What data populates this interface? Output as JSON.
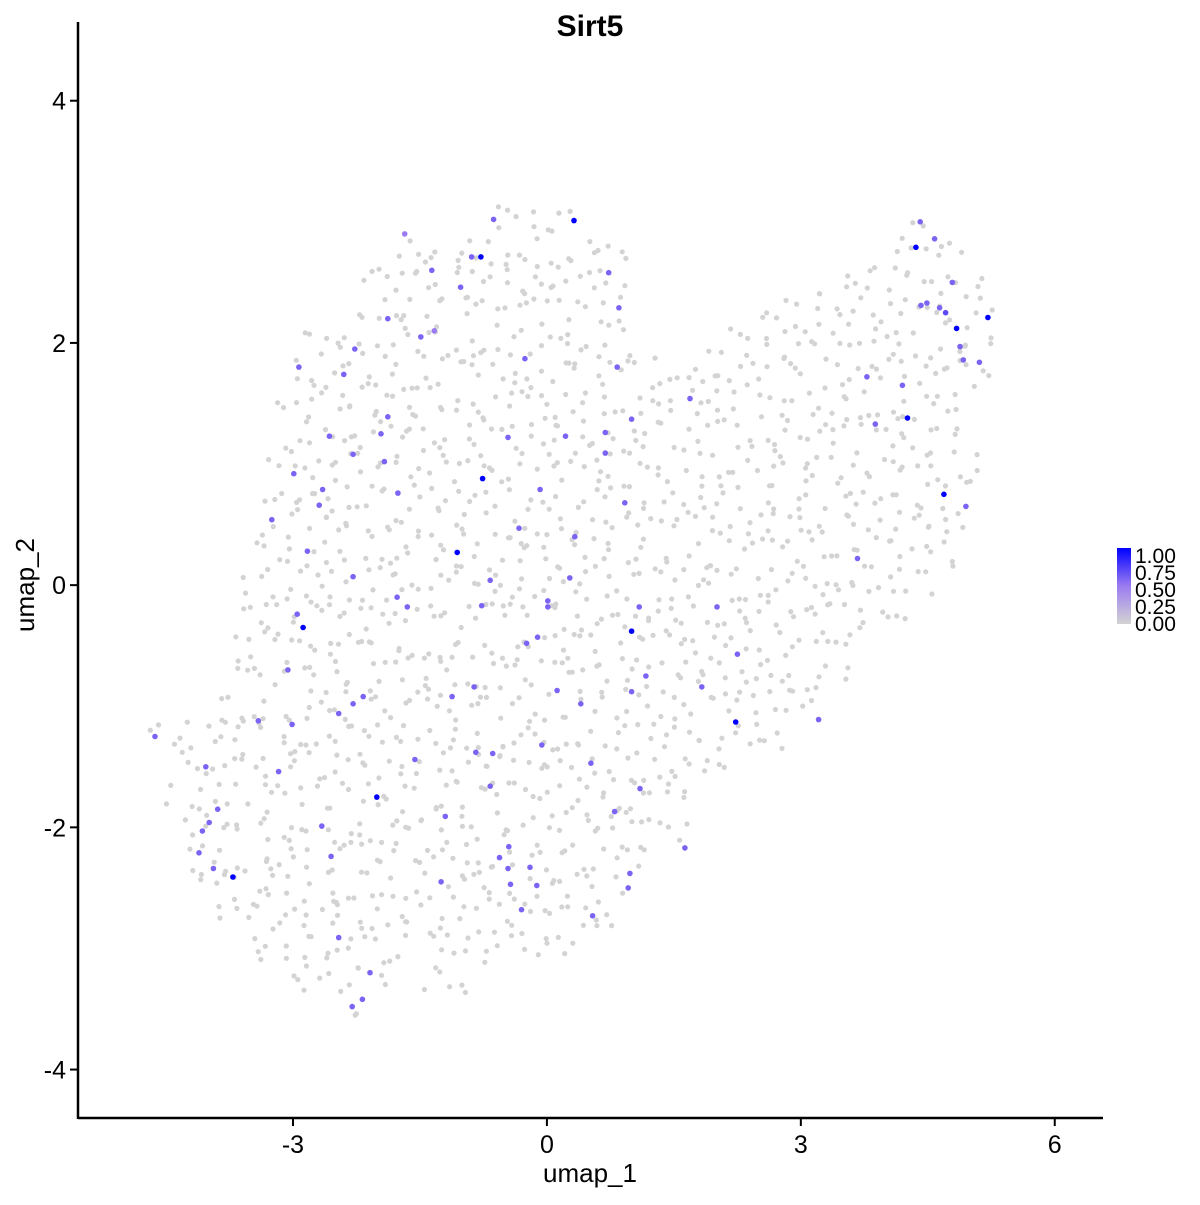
{
  "chart_data": {
    "type": "scatter",
    "title": "Sirt5",
    "xlabel": "umap_1",
    "ylabel": "umap_2",
    "xlim": [
      -5.54,
      6.57
    ],
    "ylim": [
      -4.4,
      4.65
    ],
    "xticks": [
      -3,
      0,
      3,
      6
    ],
    "yticks": [
      -4,
      -2,
      0,
      2,
      4
    ],
    "grid": false,
    "legend": {
      "placement": "right",
      "type": "colorbar",
      "labels": [
        "1.00",
        "0.75",
        "0.50",
        "0.25",
        "0.00"
      ],
      "low_color": "#D3D3D3",
      "high_color": "#0000FF"
    },
    "zero_expression_cells": {
      "color": "#D3D3D3",
      "value": 0,
      "rows": [
        {
          "y": 3.0,
          "x": [
            [
              -0.6,
              0.4
            ],
            [
              4.4,
              4.6
            ]
          ]
        },
        {
          "y": 2.75,
          "x": [
            [
              -1.7,
              1.0
            ],
            [
              4.2,
              4.9
            ]
          ]
        },
        {
          "y": 2.5,
          "x": [
            [
              -2.1,
              1.0
            ],
            [
              3.3,
              5.3
            ]
          ]
        },
        {
          "y": 2.25,
          "x": [
            [
              -2.2,
              0.9
            ],
            [
              2.6,
              5.4
            ]
          ]
        },
        {
          "y": 2.0,
          "x": [
            [
              -2.9,
              1.0
            ],
            [
              2.0,
              5.4
            ]
          ]
        },
        {
          "y": 1.75,
          "x": [
            [
              -3.0,
              5.3
            ]
          ]
        },
        {
          "y": 1.5,
          "x": [
            [
              -3.1,
              5.1
            ]
          ]
        },
        {
          "y": 1.25,
          "x": [
            [
              -3.0,
              5.0
            ]
          ]
        },
        {
          "y": 1.0,
          "x": [
            [
              -3.2,
              5.2
            ]
          ]
        },
        {
          "y": 0.75,
          "x": [
            [
              -3.25,
              5.1
            ]
          ]
        },
        {
          "y": 0.5,
          "x": [
            [
              -3.3,
              5.0
            ]
          ]
        },
        {
          "y": 0.25,
          "x": [
            [
              -3.4,
              4.9
            ]
          ]
        },
        {
          "y": 0.0,
          "x": [
            [
              -3.5,
              4.7
            ]
          ]
        },
        {
          "y": -0.25,
          "x": [
            [
              -3.6,
              4.4
            ]
          ]
        },
        {
          "y": -0.5,
          "x": [
            [
              -3.6,
              3.8
            ]
          ]
        },
        {
          "y": -0.75,
          "x": [
            [
              -3.7,
              3.6
            ]
          ]
        },
        {
          "y": -1.0,
          "x": [
            [
              -3.9,
              3.3
            ]
          ]
        },
        {
          "y": -1.25,
          "x": [
            [
              -4.6,
              2.9
            ]
          ]
        },
        {
          "y": -1.5,
          "x": [
            [
              -4.3,
              2.3
            ]
          ]
        },
        {
          "y": -1.75,
          "x": [
            [
              -4.4,
              1.8
            ]
          ]
        },
        {
          "y": -2.0,
          "x": [
            [
              -4.2,
              1.7
            ]
          ]
        },
        {
          "y": -2.25,
          "x": [
            [
              -4.2,
              1.3
            ]
          ]
        },
        {
          "y": -2.5,
          "x": [
            [
              -4.0,
              1.0
            ]
          ]
        },
        {
          "y": -2.75,
          "x": [
            [
              -3.8,
              0.9
            ]
          ]
        },
        {
          "y": -3.0,
          "x": [
            [
              -3.5,
              -1.5
            ],
            [
              -1.3,
              0.3
            ]
          ]
        },
        {
          "y": -3.25,
          "x": [
            [
              -3.0,
              -1.9
            ],
            [
              -1.4,
              -1.0
            ]
          ]
        },
        {
          "y": -3.5,
          "x": [
            [
              -2.3,
              -2.1
            ]
          ]
        }
      ]
    },
    "expressing_cells": [
      [
        0.32,
        3.01,
        1
      ],
      [
        -0.78,
        2.71,
        1
      ],
      [
        4.36,
        2.79,
        1
      ],
      [
        4.84,
        2.12,
        1
      ],
      [
        5.21,
        2.21,
        1
      ],
      [
        4.26,
        1.38,
        1
      ],
      [
        -0.76,
        0.88,
        1
      ],
      [
        4.69,
        0.75,
        1
      ],
      [
        -1.06,
        0.27,
        1
      ],
      [
        -2.88,
        -0.35,
        1
      ],
      [
        1.0,
        -0.38,
        1
      ],
      [
        2.23,
        -1.13,
        1
      ],
      [
        -2.01,
        -1.75,
        1
      ],
      [
        -3.71,
        -2.41,
        1
      ],
      [
        -0.63,
        3.02,
        0.6
      ],
      [
        -0.89,
        2.71,
        0.6
      ],
      [
        -1.36,
        2.6,
        0.6
      ],
      [
        -1.02,
        2.46,
        0.6
      ],
      [
        0.73,
        2.58,
        0.6
      ],
      [
        0.85,
        2.29,
        0.6
      ],
      [
        -1.68,
        2.9,
        0.5
      ],
      [
        -1.88,
        2.2,
        0.6
      ],
      [
        -1.49,
        2.05,
        0.6
      ],
      [
        -1.33,
        2.1,
        0.5
      ],
      [
        -2.93,
        1.8,
        0.6
      ],
      [
        -2.27,
        1.95,
        0.6
      ],
      [
        -2.4,
        1.74,
        0.6
      ],
      [
        -0.26,
        1.87,
        0.6
      ],
      [
        0.83,
        1.8,
        0.6
      ],
      [
        1.69,
        1.54,
        0.6
      ],
      [
        3.78,
        1.72,
        0.6
      ],
      [
        3.88,
        1.33,
        0.6
      ],
      [
        4.2,
        1.65,
        0.6
      ],
      [
        4.41,
        3.0,
        0.6
      ],
      [
        4.58,
        2.86,
        0.6
      ],
      [
        4.64,
        2.29,
        0.6
      ],
      [
        4.71,
        2.25,
        0.7
      ],
      [
        4.42,
        2.31,
        0.6
      ],
      [
        4.49,
        2.33,
        0.6
      ],
      [
        4.79,
        2.5,
        0.6
      ],
      [
        4.88,
        1.97,
        0.6
      ],
      [
        4.92,
        1.86,
        0.6
      ],
      [
        5.11,
        1.84,
        0.6
      ],
      [
        4.95,
        0.65,
        0.6
      ],
      [
        -1.88,
        1.39,
        0.6
      ],
      [
        -1.96,
        1.25,
        0.6
      ],
      [
        -2.57,
        1.23,
        0.6
      ],
      [
        -1.92,
        1.02,
        0.6
      ],
      [
        -2.29,
        1.08,
        0.6
      ],
      [
        -2.99,
        0.92,
        0.6
      ],
      [
        -2.65,
        0.79,
        0.6
      ],
      [
        -2.69,
        0.66,
        0.6
      ],
      [
        -1.76,
        0.76,
        0.6
      ],
      [
        -3.25,
        0.54,
        0.6
      ],
      [
        -2.83,
        0.28,
        0.6
      ],
      [
        -2.29,
        0.07,
        0.6
      ],
      [
        -1.77,
        -0.1,
        0.6
      ],
      [
        -1.65,
        -0.18,
        0.6
      ],
      [
        -2.95,
        -0.24,
        0.6
      ],
      [
        -3.06,
        -0.7,
        0.6
      ],
      [
        -3.01,
        -1.15,
        0.6
      ],
      [
        -3.41,
        -1.12,
        0.6
      ],
      [
        -2.46,
        -1.06,
        0.6
      ],
      [
        -2.29,
        -0.98,
        0.6
      ],
      [
        -2.17,
        -0.92,
        0.6
      ],
      [
        -3.17,
        -1.54,
        0.6
      ],
      [
        -1.56,
        -1.44,
        0.6
      ],
      [
        -4.03,
        -1.5,
        0.6
      ],
      [
        -4.63,
        -1.25,
        0.6
      ],
      [
        -3.99,
        -1.96,
        0.6
      ],
      [
        -4.07,
        -2.03,
        0.6
      ],
      [
        -3.89,
        -1.85,
        0.6
      ],
      [
        -4.11,
        -2.21,
        0.6
      ],
      [
        -3.94,
        -2.34,
        0.6
      ],
      [
        -2.66,
        -1.99,
        0.6
      ],
      [
        -2.55,
        -2.24,
        0.6
      ],
      [
        -2.46,
        -2.91,
        0.6
      ],
      [
        -2.09,
        -3.2,
        0.6
      ],
      [
        -2.18,
        -3.42,
        0.6
      ],
      [
        -2.3,
        -3.48,
        0.6
      ],
      [
        -1.2,
        -1.91,
        0.6
      ],
      [
        -1.25,
        -2.45,
        0.6
      ],
      [
        -1.12,
        -0.92,
        0.6
      ],
      [
        -0.86,
        -0.84,
        0.6
      ],
      [
        -0.84,
        -1.38,
        0.6
      ],
      [
        -0.67,
        -1.66,
        0.6
      ],
      [
        -0.64,
        -1.39,
        0.6
      ],
      [
        -0.56,
        -2.25,
        0.6
      ],
      [
        -0.45,
        -2.16,
        0.6
      ],
      [
        -0.43,
        -2.47,
        0.6
      ],
      [
        -0.2,
        -2.33,
        0.6
      ],
      [
        -0.12,
        -2.48,
        0.6
      ],
      [
        -0.3,
        -2.68,
        0.6
      ],
      [
        -0.46,
        -2.34,
        0.6
      ],
      [
        -0.77,
        -0.17,
        0.6
      ],
      [
        -0.67,
        0.04,
        0.6
      ],
      [
        -0.33,
        0.47,
        0.6
      ],
      [
        -0.08,
        0.79,
        0.6
      ],
      [
        -0.46,
        1.22,
        0.6
      ],
      [
        0.22,
        1.23,
        0.6
      ],
      [
        0.69,
        1.26,
        0.6
      ],
      [
        0.69,
        1.09,
        0.6
      ],
      [
        1.0,
        1.37,
        0.6
      ],
      [
        0.92,
        0.68,
        0.6
      ],
      [
        0.33,
        0.4,
        0.6
      ],
      [
        0.27,
        0.06,
        0.6
      ],
      [
        0.01,
        -0.18,
        0.6
      ],
      [
        -0.11,
        -0.43,
        0.6
      ],
      [
        0.01,
        -0.13,
        0.6
      ],
      [
        -0.24,
        -0.48,
        0.6
      ],
      [
        -0.06,
        -1.32,
        0.6
      ],
      [
        0.12,
        -0.87,
        0.6
      ],
      [
        0.4,
        -0.98,
        0.6
      ],
      [
        0.52,
        -1.47,
        0.6
      ],
      [
        0.8,
        -1.87,
        0.6
      ],
      [
        1.1,
        -1.68,
        0.6
      ],
      [
        0.98,
        -2.38,
        0.6
      ],
      [
        0.96,
        -2.5,
        0.6
      ],
      [
        0.54,
        -2.73,
        0.6
      ],
      [
        1.09,
        -0.18,
        0.6
      ],
      [
        1.17,
        -0.75,
        0.6
      ],
      [
        1.0,
        -0.88,
        0.6
      ],
      [
        1.83,
        -0.84,
        0.6
      ],
      [
        2.01,
        -0.18,
        0.6
      ],
      [
        2.25,
        -0.57,
        0.6
      ],
      [
        1.63,
        -2.17,
        0.6
      ],
      [
        3.21,
        -1.11,
        0.6
      ],
      [
        3.67,
        0.22,
        0.6
      ]
    ]
  }
}
